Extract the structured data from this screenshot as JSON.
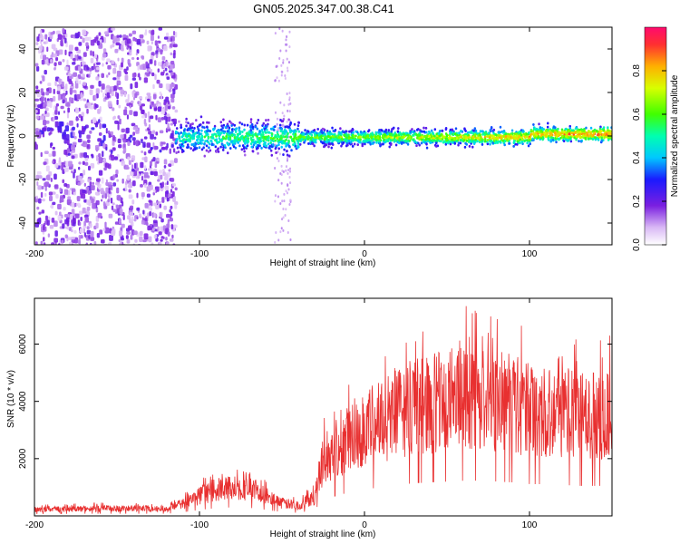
{
  "title": "GN05.2025.347.00.38.C41",
  "chart_data": [
    {
      "type": "heatmap",
      "xlabel": "Height of straight line (km)",
      "ylabel": "Frequency (Hz)",
      "xlim": [
        -200,
        150
      ],
      "ylim": [
        -50,
        50
      ],
      "xticks": [
        -200,
        -100,
        0,
        100
      ],
      "yticks": [
        -40,
        -20,
        0,
        20,
        40
      ],
      "colorbar": {
        "label": "Normalized spectral amplitude",
        "range": [
          0,
          1
        ],
        "ticks": [
          "0.0",
          "0.2",
          "0.4",
          "0.6",
          "0.8"
        ],
        "tick_values": [
          0.0,
          0.2,
          0.4,
          0.6,
          0.8
        ]
      },
      "description_series": [
        {
          "name": "broadband_noise",
          "x_range": [
            -200,
            -115
          ],
          "y_range": [
            -50,
            50
          ],
          "intensity": 0.15
        },
        {
          "name": "signal_band",
          "x_range": [
            -115,
            150
          ],
          "center_freq": 0,
          "intensity_start": 0.5,
          "intensity_end": 0.9
        }
      ]
    },
    {
      "type": "line",
      "xlabel": "Height of straight line (km)",
      "ylabel": "SNR (10 * v/v)",
      "xlim": [
        -200,
        150
      ],
      "ylim": [
        0,
        7600
      ],
      "xticks": [
        -200,
        -100,
        0,
        100
      ],
      "yticks": [
        2000,
        4000,
        6000
      ],
      "series": [
        {
          "name": "SNR",
          "color": "#e83030",
          "envelope": {
            "x": [
              -200,
              -160,
              -120,
              -110,
              -100,
              -90,
              -80,
              -70,
              -60,
              -50,
              -40,
              -30,
              -27,
              -25,
              -20,
              -10,
              0,
              10,
              20,
              30,
              40,
              50,
              60,
              70,
              80,
              90,
              100,
              110,
              120,
              130,
              140,
              150
            ],
            "y": [
              220,
              260,
              250,
              420,
              700,
              900,
              1000,
              950,
              700,
              450,
              350,
              700,
              1500,
              1900,
              2200,
              2700,
              3000,
              3400,
              3600,
              3800,
              3900,
              4000,
              4100,
              4100,
              4000,
              3900,
              3700,
              3700,
              3600,
              3500,
              3500,
              3500
            ]
          }
        }
      ]
    }
  ]
}
